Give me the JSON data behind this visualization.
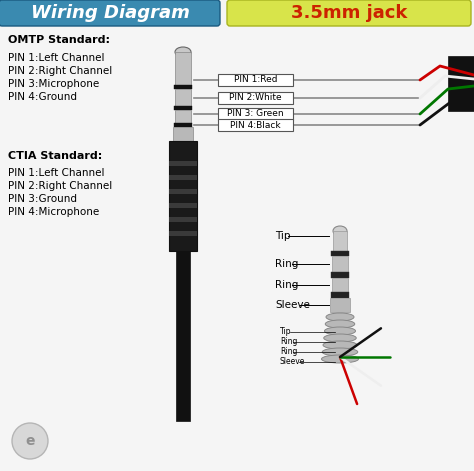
{
  "title_left": "Wiring Diagram",
  "title_right": "3.5mm jack",
  "title_left_bg_top": "#4a9cc4",
  "title_left_bg_bot": "#2a6a94",
  "title_right_bg": "#d4e04a",
  "title_right_color": "#cc2200",
  "bg_color": "#f5f5f5",
  "omtp_header": "OMTP Standard:",
  "omtp_pins": [
    "PIN 1:Left Channel",
    "PIN 2:Right Channel",
    "PIN 3:Microphone",
    "PIN 4:Ground"
  ],
  "ctia_header": "CTIA Standard:",
  "ctia_pins": [
    "PIN 1:Left Channel",
    "PIN 2:Right Channel",
    "PIN 3:Ground",
    "PIN 4:Microphone"
  ],
  "wire_labels": [
    "PIN 1:Red",
    "PIN 2:White",
    "PIN 3: Green",
    "PIN 4:Black"
  ],
  "wire_colors": [
    "#cc0000",
    "#eeeeee",
    "#007700",
    "#111111"
  ],
  "jack_labels": [
    "Tip",
    "Ring",
    "Ring",
    "Sleeve"
  ],
  "jack2_labels": [
    "Tip",
    "Ring",
    "Ring",
    "Sleeve"
  ]
}
